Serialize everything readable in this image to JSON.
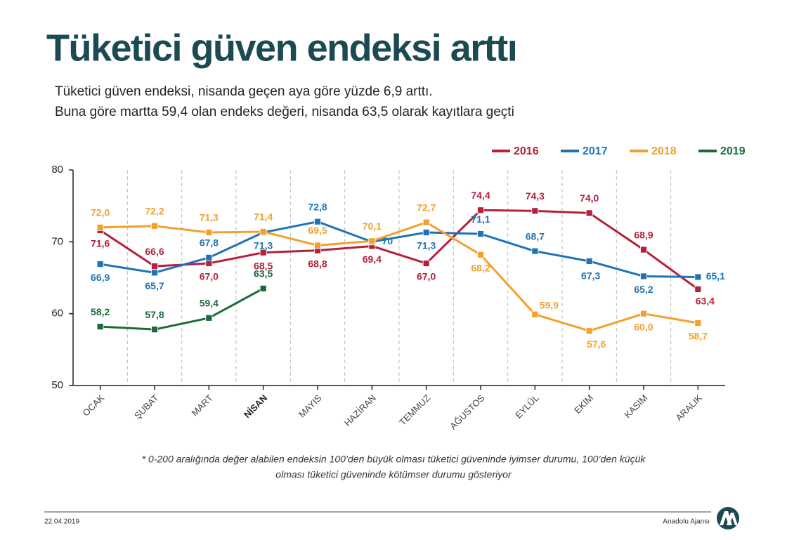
{
  "chart_data": {
    "type": "line",
    "title": "Tüketici güven endeksi arttı",
    "subtitle": [
      "Tüketici güven endeksi, nisanda geçen aya göre yüzde 6,9 arttı.",
      "Buna göre martta 59,4 olan endeks değeri, nisanda 63,5 olarak kayıtlara geçti"
    ],
    "categories": [
      "OCAK",
      "ŞUBAT",
      "MART",
      "NİSAN",
      "MAYIS",
      "HAZİRAN",
      "TEMMUZ",
      "AĞUSTOS",
      "EYLÜL",
      "EKİM",
      "KASIM",
      "ARALIK"
    ],
    "highlight_index": 3,
    "series": [
      {
        "name": "2016",
        "color": "#b5203a",
        "values": [
          71.6,
          66.6,
          67.0,
          68.5,
          68.8,
          69.4,
          67.0,
          74.4,
          74.3,
          74.0,
          68.9,
          63.4
        ],
        "value_labels": [
          "71,6",
          "66,6",
          "67,0",
          "68,5",
          "68,8",
          "69,4",
          "67,0",
          "74,4",
          "74,3",
          "74,0",
          "68,9",
          "63,4"
        ]
      },
      {
        "name": "2017",
        "color": "#1e73b8",
        "values": [
          66.9,
          65.7,
          67.8,
          71.3,
          72.8,
          70,
          71.3,
          71.1,
          68.7,
          67.3,
          65.2,
          65.1
        ],
        "value_labels": [
          "66,9",
          "65,7",
          "67,8",
          "71,3",
          "72,8",
          "70",
          "71,3",
          "71,1",
          "68,7",
          "67,3",
          "65,2",
          "65,1"
        ]
      },
      {
        "name": "2018",
        "color": "#f3a02c",
        "values": [
          72.0,
          72.2,
          71.3,
          71.4,
          69.5,
          70.1,
          72.7,
          68.2,
          59.9,
          57.6,
          60.0,
          58.7
        ],
        "value_labels": [
          "72,0",
          "72,2",
          "71,3",
          "71,4",
          "69,5",
          "70,1",
          "72,7",
          "68,2",
          "59,9",
          "57,6",
          "60,0",
          "58,7"
        ]
      },
      {
        "name": "2019",
        "color": "#1b6b3a",
        "values": [
          58.2,
          57.8,
          59.4,
          63.5,
          null,
          null,
          null,
          null,
          null,
          null,
          null,
          null
        ],
        "value_labels": [
          "58,2",
          "57,8",
          "59,4",
          "63,5",
          null,
          null,
          null,
          null,
          null,
          null,
          null,
          null
        ]
      }
    ],
    "ylim": [
      50,
      80
    ],
    "yticks": [
      50,
      60,
      70,
      80
    ],
    "grid": "vertical-dashed",
    "legend": "top-right",
    "footnote": [
      "* 0-200 aralığında değer alabilen endeksin 100’den büyük olması tüketici güveninde iyimser durumu, 100’den küçük",
      "olması tüketici güveninde kötümser durumu gösteriyor"
    ],
    "date": "22.04.2019",
    "source": "Anadolu Ajansı"
  }
}
